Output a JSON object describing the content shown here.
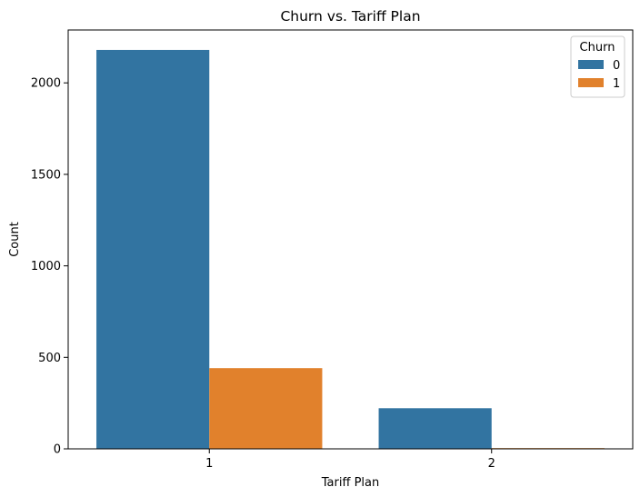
{
  "chart_data": {
    "type": "bar",
    "title": "Churn vs. Tariff Plan",
    "xlabel": "Tariff Plan",
    "ylabel": "Count",
    "categories": [
      "1",
      "2"
    ],
    "series": [
      {
        "name": "0",
        "color": "#3274a1",
        "values": [
          2180,
          222
        ]
      },
      {
        "name": "1",
        "color": "#e1812c",
        "values": [
          441,
          4
        ]
      }
    ],
    "ylim": [
      0,
      2289
    ],
    "yticks": [
      0,
      500,
      1000,
      1500,
      2000
    ],
    "legend": {
      "title": "Churn",
      "position": "top-right"
    },
    "grid": false
  }
}
